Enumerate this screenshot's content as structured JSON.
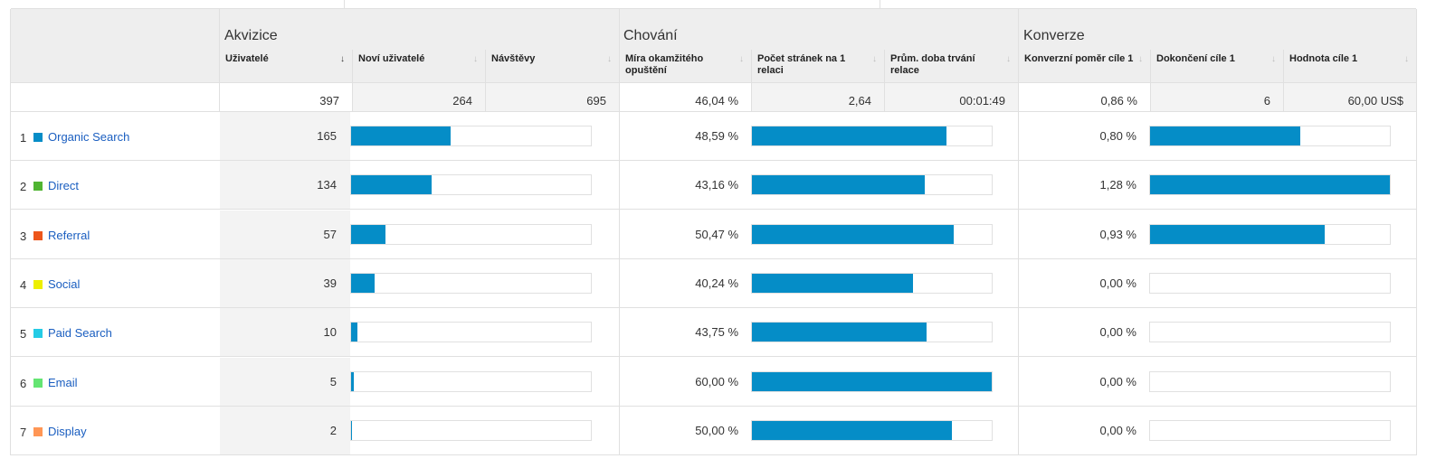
{
  "groups": {
    "acquisition": "Akvizice",
    "behavior": "Chování",
    "conversions": "Konverze"
  },
  "columns": {
    "users": "Uživatelé",
    "new_users": "Noví uživatelé",
    "sessions": "Návštěvy",
    "bounce_rate": "Míra okamžitého opuštění",
    "pages_per_session": "Počet stránek na 1 relaci",
    "avg_duration": "Prům. doba trvání relace",
    "conv_rate": "Konverzní poměr cíle 1",
    "goal_completions": "Dokončení cíle 1",
    "goal_value": "Hodnota cíle 1"
  },
  "sort_icons": {
    "active": "↓",
    "inactive": "↓"
  },
  "totals": {
    "users": "397",
    "new_users": "264",
    "sessions": "695",
    "bounce_rate": "46,04 %",
    "pages_per_session": "2,64",
    "avg_duration": "00:01:49",
    "conv_rate": "0,86 %",
    "goal_completions": "6",
    "goal_value": "60,00 US$"
  },
  "rows": [
    {
      "num": "1",
      "channel": "Organic Search",
      "color": "#058dc7",
      "users": "165",
      "users_share": 0.4156,
      "bounce_rate": "48,59 %",
      "bounce_share": 0.8098,
      "conv_rate": "0,80 %",
      "conv_share": 0.625
    },
    {
      "num": "2",
      "channel": "Direct",
      "color": "#50b432",
      "users": "134",
      "users_share": 0.3375,
      "bounce_rate": "43,16 %",
      "bounce_share": 0.7193,
      "conv_rate": "1,28 %",
      "conv_share": 1.0
    },
    {
      "num": "3",
      "channel": "Referral",
      "color": "#ed561b",
      "users": "57",
      "users_share": 0.1436,
      "bounce_rate": "50,47 %",
      "bounce_share": 0.8412,
      "conv_rate": "0,93 %",
      "conv_share": 0.7266
    },
    {
      "num": "4",
      "channel": "Social",
      "color": "#edef00",
      "users": "39",
      "users_share": 0.0982,
      "bounce_rate": "40,24 %",
      "bounce_share": 0.6707,
      "conv_rate": "0,00 %",
      "conv_share": 0
    },
    {
      "num": "5",
      "channel": "Paid Search",
      "color": "#24cbe5",
      "users": "10",
      "users_share": 0.0252,
      "bounce_rate": "43,75 %",
      "bounce_share": 0.7292,
      "conv_rate": "0,00 %",
      "conv_share": 0
    },
    {
      "num": "6",
      "channel": "Email",
      "color": "#64e572",
      "users": "5",
      "users_share": 0.0126,
      "bounce_rate": "60,00 %",
      "bounce_share": 1.0,
      "conv_rate": "0,00 %",
      "conv_share": 0
    },
    {
      "num": "7",
      "channel": "Display",
      "color": "#ff9655",
      "users": "2",
      "users_share": 0.005,
      "bounce_rate": "50,00 %",
      "bounce_share": 0.8333,
      "conv_rate": "0,00 %",
      "conv_share": 0
    }
  ]
}
